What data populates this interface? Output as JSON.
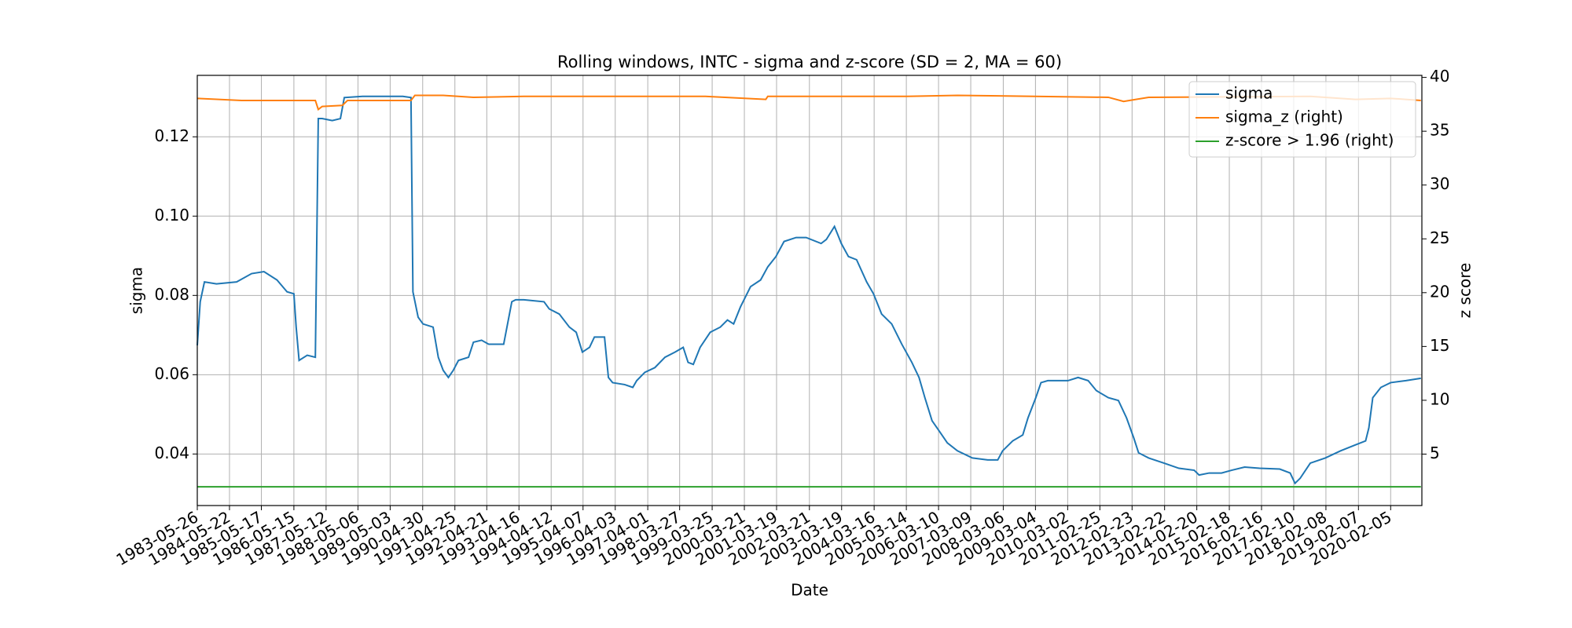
{
  "chart_data": {
    "type": "line",
    "title": "Rolling windows, INTC - sigma and z-score (SD = 2, MA = 60)",
    "x_label": "Date",
    "y_label": "sigma",
    "y2_label": "z score",
    "grid": true,
    "legend": "upper right",
    "xlim": [
      1983.4,
      2021.05
    ],
    "xticks": [
      {
        "value": 1983.4,
        "label": "1983-05-26"
      },
      {
        "value": 1984.39,
        "label": "1984-05-22"
      },
      {
        "value": 1985.37,
        "label": "1985-05-17"
      },
      {
        "value": 1986.37,
        "label": "1986-05-15"
      },
      {
        "value": 1987.36,
        "label": "1987-05-12"
      },
      {
        "value": 1988.34,
        "label": "1988-05-06"
      },
      {
        "value": 1989.33,
        "label": "1989-05-03"
      },
      {
        "value": 1990.33,
        "label": "1990-04-30"
      },
      {
        "value": 1991.32,
        "label": "1991-04-25"
      },
      {
        "value": 1992.3,
        "label": "1992-04-21"
      },
      {
        "value": 1993.29,
        "label": "1993-04-16"
      },
      {
        "value": 1994.28,
        "label": "1994-04-12"
      },
      {
        "value": 1995.26,
        "label": "1995-04-07"
      },
      {
        "value": 1996.25,
        "label": "1996-04-03"
      },
      {
        "value": 1997.25,
        "label": "1997-04-01"
      },
      {
        "value": 1998.23,
        "label": "1998-03-27"
      },
      {
        "value": 1999.23,
        "label": "1999-03-25"
      },
      {
        "value": 2000.22,
        "label": "2000-03-21"
      },
      {
        "value": 2001.21,
        "label": "2001-03-19"
      },
      {
        "value": 2002.22,
        "label": "2002-03-21"
      },
      {
        "value": 2003.21,
        "label": "2003-03-19"
      },
      {
        "value": 2004.21,
        "label": "2004-03-16"
      },
      {
        "value": 2005.2,
        "label": "2005-03-14"
      },
      {
        "value": 2006.19,
        "label": "2006-03-10"
      },
      {
        "value": 2007.18,
        "label": "2007-03-09"
      },
      {
        "value": 2008.18,
        "label": "2008-03-06"
      },
      {
        "value": 2009.17,
        "label": "2009-03-04"
      },
      {
        "value": 2010.16,
        "label": "2010-03-02"
      },
      {
        "value": 2011.15,
        "label": "2011-02-25"
      },
      {
        "value": 2012.14,
        "label": "2012-02-23"
      },
      {
        "value": 2013.14,
        "label": "2013-02-22"
      },
      {
        "value": 2014.13,
        "label": "2014-02-20"
      },
      {
        "value": 2015.13,
        "label": "2015-02-18"
      },
      {
        "value": 2016.12,
        "label": "2016-02-16"
      },
      {
        "value": 2017.11,
        "label": "2017-02-10"
      },
      {
        "value": 2018.1,
        "label": "2018-02-08"
      },
      {
        "value": 2019.1,
        "label": "2019-02-07"
      },
      {
        "value": 2020.09,
        "label": "2020-02-05"
      }
    ],
    "ylim": [
      0.027,
      0.1355
    ],
    "yticks": [
      {
        "value": 0.04,
        "label": "0.04"
      },
      {
        "value": 0.06,
        "label": "0.06"
      },
      {
        "value": 0.08,
        "label": "0.08"
      },
      {
        "value": 0.1,
        "label": "0.10"
      },
      {
        "value": 0.12,
        "label": "0.12"
      }
    ],
    "y2lim": [
      0.22,
      40.19
    ],
    "y2ticks": [
      5,
      10,
      15,
      20,
      25,
      30,
      35,
      40
    ],
    "x": [
      1983.4,
      1983.49,
      1983.62,
      1983.99,
      1984.61,
      1985.07,
      1985.45,
      1985.85,
      1986.16,
      1986.37,
      1986.44,
      1986.53,
      1986.78,
      1987.03,
      1987.12,
      1987.24,
      1987.55,
      1987.8,
      1987.92,
      1988.48,
      1989.72,
      1989.97,
      1990.03,
      1990.19,
      1990.34,
      1990.65,
      1990.81,
      1990.96,
      1991.12,
      1991.27,
      1991.43,
      1991.74,
      1991.89,
      1992.14,
      1992.36,
      1992.82,
      1993.07,
      1993.19,
      1993.44,
      1994.06,
      1994.22,
      1994.53,
      1994.84,
      1995.05,
      1995.24,
      1995.46,
      1995.61,
      1995.92,
      1996.04,
      1996.17,
      1996.54,
      1996.79,
      1996.91,
      1997.16,
      1997.47,
      1997.78,
      1998.09,
      1998.34,
      1998.49,
      1998.65,
      1998.86,
      1999.17,
      1999.48,
      1999.7,
      1999.89,
      2000.1,
      2000.41,
      2000.72,
      2000.94,
      2001.19,
      2001.44,
      2001.81,
      2002.12,
      2002.58,
      2002.74,
      2002.99,
      2003.2,
      2003.42,
      2003.67,
      2003.98,
      2004.19,
      2004.44,
      2004.75,
      2005.06,
      2005.37,
      2005.59,
      2005.77,
      2005.99,
      2006.21,
      2006.46,
      2006.77,
      2007.23,
      2007.7,
      2008.01,
      2008.16,
      2008.47,
      2008.78,
      2008.94,
      2009.18,
      2009.34,
      2009.55,
      2010.17,
      2010.48,
      2010.79,
      2011.04,
      2011.41,
      2011.72,
      2011.97,
      2012.19,
      2012.34,
      2012.65,
      2013.12,
      2013.58,
      2014.05,
      2014.2,
      2014.51,
      2014.89,
      2015.2,
      2015.6,
      2016.06,
      2016.68,
      2017.0,
      2017.15,
      2017.31,
      2017.62,
      2018.08,
      2018.55,
      2019.01,
      2019.32,
      2019.42,
      2019.54,
      2019.79,
      2020.09,
      2020.56,
      2021.02
    ],
    "series": [
      {
        "name": "sigma",
        "color": "#1f77b4",
        "values": [
          0.0674,
          0.0784,
          0.0834,
          0.0829,
          0.0834,
          0.0855,
          0.086,
          0.0839,
          0.0809,
          0.0804,
          0.072,
          0.0636,
          0.0649,
          0.0644,
          0.1246,
          0.1246,
          0.1241,
          0.1246,
          0.1299,
          0.1302,
          0.1302,
          0.1299,
          0.0809,
          0.0745,
          0.0728,
          0.072,
          0.0644,
          0.0611,
          0.0593,
          0.0611,
          0.0636,
          0.0644,
          0.0682,
          0.0687,
          0.0677,
          0.0677,
          0.0784,
          0.0789,
          0.0789,
          0.0784,
          0.0766,
          0.0753,
          0.072,
          0.0707,
          0.0657,
          0.0669,
          0.0695,
          0.0695,
          0.0593,
          0.058,
          0.0575,
          0.0568,
          0.0585,
          0.0606,
          0.0618,
          0.0644,
          0.0657,
          0.0669,
          0.0631,
          0.0626,
          0.0669,
          0.0707,
          0.072,
          0.0738,
          0.0728,
          0.0771,
          0.0822,
          0.0839,
          0.0872,
          0.0898,
          0.0936,
          0.0946,
          0.0946,
          0.0931,
          0.0941,
          0.0974,
          0.0931,
          0.0898,
          0.089,
          0.0834,
          0.0804,
          0.0753,
          0.0728,
          0.0677,
          0.0631,
          0.0593,
          0.0542,
          0.0484,
          0.0458,
          0.0428,
          0.0408,
          0.039,
          0.0385,
          0.0385,
          0.0408,
          0.0433,
          0.0448,
          0.0491,
          0.0542,
          0.058,
          0.0585,
          0.0585,
          0.0593,
          0.0585,
          0.056,
          0.0542,
          0.0535,
          0.0491,
          0.0441,
          0.0403,
          0.039,
          0.0377,
          0.0364,
          0.0359,
          0.0347,
          0.0352,
          0.0352,
          0.0359,
          0.0367,
          0.0364,
          0.0362,
          0.0352,
          0.0326,
          0.0339,
          0.0377,
          0.039,
          0.0408,
          0.0423,
          0.0433,
          0.0466,
          0.0542,
          0.0568,
          0.058,
          0.0585,
          0.0591
        ]
      },
      {
        "name": "sigma_z (right)",
        "color": "#ff7f0e",
        "axis": "y2",
        "x": [
          1983.4,
          1984.76,
          1986.31,
          1987.03,
          1987.12,
          1987.24,
          1987.86,
          1988.02,
          1989.97,
          1990.09,
          1990.96,
          1991.89,
          1993.44,
          1999.02,
          2000.88,
          2000.94,
          2005.22,
          2006.77,
          2011.41,
          2011.88,
          2012.65,
          2017.62,
          2019.01,
          2020.09,
          2021.02
        ],
        "values": [
          38.05,
          37.86,
          37.86,
          37.86,
          37.02,
          37.3,
          37.4,
          37.86,
          37.86,
          38.33,
          38.33,
          38.15,
          38.24,
          38.24,
          37.96,
          38.24,
          38.24,
          38.33,
          38.15,
          37.77,
          38.15,
          38.24,
          37.96,
          38.05,
          37.86
        ]
      },
      {
        "name": "z-score > 1.96 (right)",
        "color": "#2ca02c",
        "axis": "y2",
        "x": [
          1983.4,
          2021.02
        ],
        "values": [
          1.96,
          1.96
        ]
      }
    ]
  }
}
